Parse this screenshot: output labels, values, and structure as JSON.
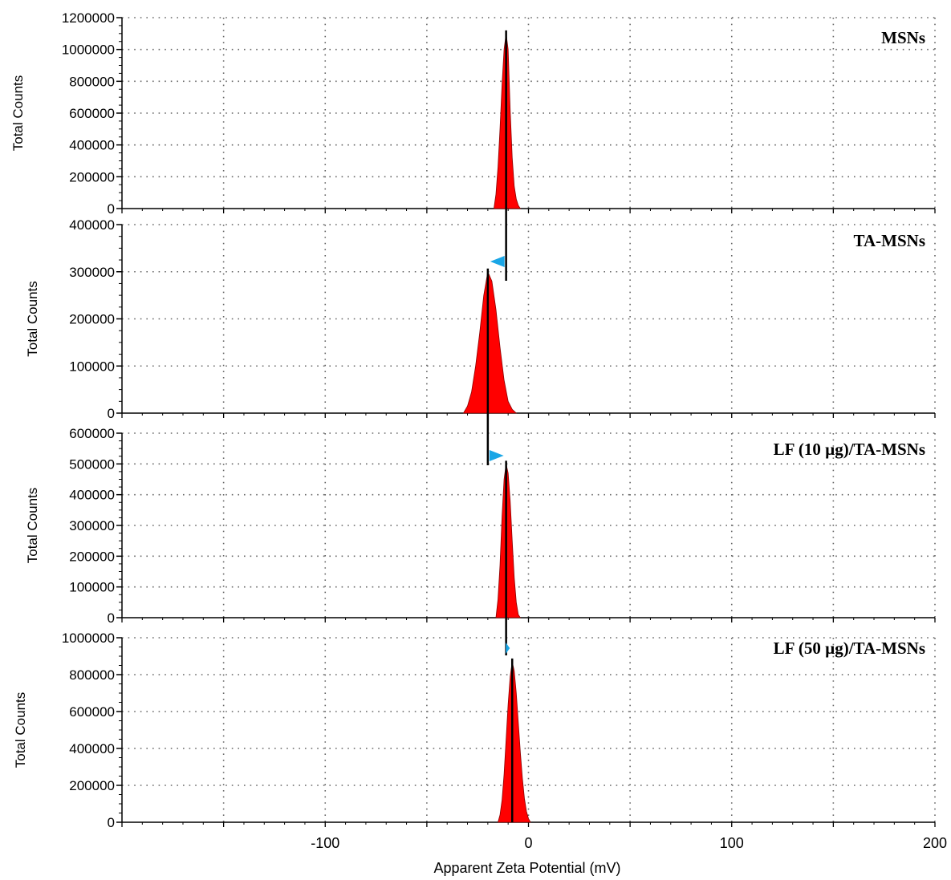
{
  "chart_data": [
    {
      "type": "area",
      "panel_label": "MSNs",
      "ylabel": "Total Counts",
      "ylim": [
        0,
        1200000
      ],
      "yticks": [
        0,
        200000,
        400000,
        600000,
        800000,
        1000000,
        1200000
      ],
      "xlim": [
        -200,
        200
      ],
      "peak_mV": -11,
      "peak_counts": 1100000,
      "series": [
        {
          "values_x": [
            -17,
            -16,
            -15,
            -14,
            -13,
            -12,
            -11,
            -10,
            -9,
            -8,
            -7,
            -6,
            -5,
            -4
          ],
          "values_y": [
            0,
            90000,
            260000,
            500000,
            780000,
            1000000,
            1100000,
            1000000,
            620000,
            320000,
            140000,
            60000,
            20000,
            0
          ]
        }
      ],
      "colors": {
        "fill": "#ff0000"
      }
    },
    {
      "type": "area",
      "panel_label": "TA-MSNs",
      "ylabel": "Total Counts",
      "ylim": [
        0,
        400000
      ],
      "yticks": [
        0,
        100000,
        200000,
        300000,
        400000
      ],
      "xlim": [
        -200,
        200
      ],
      "peak_mV": -20,
      "peak_counts": 300000,
      "arrow_direction": "left",
      "series": [
        {
          "values_x": [
            -32,
            -30,
            -28,
            -26,
            -24,
            -22,
            -20,
            -18,
            -16,
            -14,
            -12,
            -10,
            -8,
            -6
          ],
          "values_y": [
            0,
            15000,
            45000,
            100000,
            170000,
            250000,
            300000,
            280000,
            220000,
            140000,
            70000,
            25000,
            8000,
            0
          ]
        }
      ],
      "colors": {
        "fill": "#ff0000"
      }
    },
    {
      "type": "area",
      "panel_label": "LF (10 µg)/TA-MSNs",
      "ylabel": "Total Counts",
      "ylim": [
        0,
        600000
      ],
      "yticks": [
        0,
        100000,
        200000,
        300000,
        400000,
        500000,
        600000
      ],
      "xlim": [
        -200,
        200
      ],
      "peak_mV": -11,
      "peak_counts": 500000,
      "arrow_direction": "right",
      "series": [
        {
          "values_x": [
            -16,
            -15,
            -14,
            -13,
            -12,
            -11,
            -10,
            -9,
            -8,
            -7,
            -6,
            -5,
            -4
          ],
          "values_y": [
            0,
            60000,
            170000,
            330000,
            450000,
            500000,
            470000,
            380000,
            250000,
            130000,
            50000,
            10000,
            0
          ]
        }
      ],
      "colors": {
        "fill": "#ff0000"
      }
    },
    {
      "type": "area",
      "panel_label": "LF (50 µg)/TA-MSNs",
      "ylabel": "Total Counts",
      "ylim": [
        0,
        1000000
      ],
      "yticks": [
        0,
        200000,
        400000,
        600000,
        800000,
        1000000
      ],
      "xlim": [
        -200,
        200
      ],
      "xticks": [
        -100,
        0,
        100,
        200
      ],
      "xlabel": "Apparent Zeta Potential (mV)",
      "peak_mV": -8,
      "peak_counts": 870000,
      "arrow_direction": "right",
      "series": [
        {
          "values_x": [
            -15,
            -14,
            -13,
            -12,
            -11,
            -10,
            -9,
            -8,
            -7,
            -6,
            -5,
            -4,
            -3,
            -2,
            -1,
            0,
            1
          ],
          "values_y": [
            0,
            40000,
            120000,
            260000,
            450000,
            640000,
            790000,
            870000,
            820000,
            700000,
            540000,
            380000,
            240000,
            130000,
            60000,
            20000,
            0
          ]
        }
      ],
      "colors": {
        "fill": "#ff0000"
      }
    }
  ],
  "colors": {
    "marker_line": "#000000",
    "arrow": "#1aa6e6",
    "grid": "#666666",
    "axis": "#000000"
  }
}
